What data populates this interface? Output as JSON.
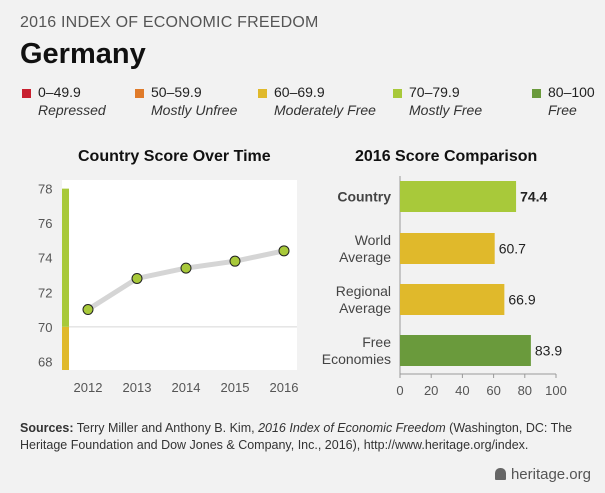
{
  "header": {
    "subtitle": "2016 INDEX OF ECONOMIC FREEDOM",
    "title": "Germany"
  },
  "legend": [
    {
      "range": "0–49.9",
      "label": "Repressed",
      "color": "#c8202f"
    },
    {
      "range": "50–59.9",
      "label": "Mostly Unfree",
      "color": "#e07b2a"
    },
    {
      "range": "60–69.9",
      "label": "Moderately Free",
      "color": "#e0b92b"
    },
    {
      "range": "70–79.9",
      "label": "Mostly Free",
      "color": "#a8c93a"
    },
    {
      "range": "80–100",
      "label": "Free",
      "color": "#6a9a3c"
    }
  ],
  "sources": {
    "label": "Sources:",
    "text_a": " Terry Miller and Anthony B. Kim, ",
    "italic": "2016 Index of Economic Freedom",
    "text_b": " (Washington, DC: The Heritage Foundation and Dow Jones & Company, Inc., 2016), http://www.heritage.org/index."
  },
  "footer": {
    "logo_text": "heritage.org"
  },
  "chart_data": [
    {
      "type": "line",
      "title": "Country Score Over Time",
      "x": [
        "2012",
        "2013",
        "2014",
        "2015",
        "2016"
      ],
      "series": [
        {
          "values": [
            71.0,
            72.8,
            73.4,
            73.8,
            74.4
          ]
        }
      ],
      "ylim": [
        67.5,
        78.5
      ],
      "yticks": [
        68,
        70,
        72,
        74,
        76,
        78
      ],
      "reference_line": 70,
      "color_band": [
        {
          "from": 67.5,
          "to": 70,
          "color": "#e0b92b"
        },
        {
          "from": 70,
          "to": 78,
          "color": "#a8c93a"
        }
      ],
      "point_color": "#a8c93a",
      "line_color": "#d5d5d5"
    },
    {
      "type": "bar",
      "orientation": "horizontal",
      "title": "2016 Score Comparison",
      "categories": [
        {
          "lines": [
            "Country"
          ],
          "bold": true
        },
        {
          "lines": [
            "World",
            "Average"
          ]
        },
        {
          "lines": [
            "Regional",
            "Average"
          ]
        },
        {
          "lines": [
            "Free",
            "Economies"
          ]
        }
      ],
      "values": [
        "74.4",
        "60.7",
        "66.9",
        "83.9"
      ],
      "colors": [
        "#a8c93a",
        "#e0b92b",
        "#e0b92b",
        "#6a9a3c"
      ],
      "xlim": [
        0,
        100
      ],
      "xticks": [
        0,
        20,
        40,
        60,
        80,
        100
      ]
    }
  ]
}
